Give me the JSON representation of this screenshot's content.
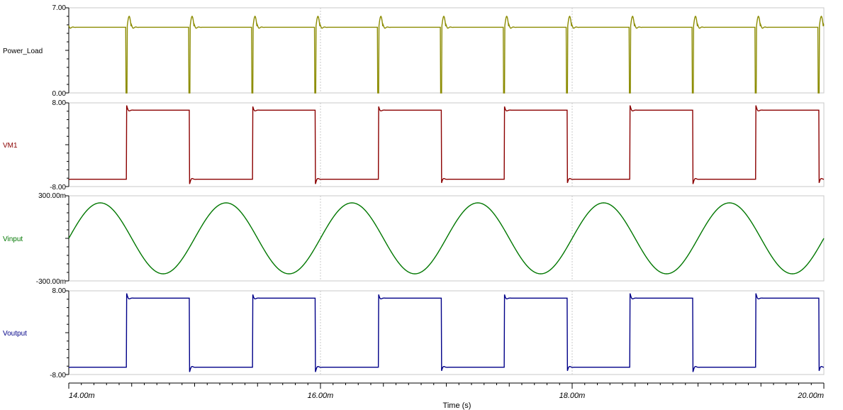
{
  "chart_data": {
    "type": "line",
    "xlabel": "Time (s)",
    "xlim": [
      0.014,
      0.02
    ],
    "x_ticks": [
      "14.00m",
      "16.00m",
      "18.00m",
      "20.00m"
    ],
    "x_tick_values": [
      0.014,
      0.016,
      0.018,
      0.02
    ],
    "grid": "dashed vertical lines at major x ticks",
    "panels": [
      {
        "name": "Power_Load",
        "color": "#8b8b00",
        "ylim": [
          0,
          7
        ],
        "y_ticks": [
          "7.00",
          "0.00"
        ],
        "waveform": "square-spikes",
        "level": 5.4,
        "spike_high": 6.3,
        "spike_low": 0.0,
        "period_s": 0.0005
      },
      {
        "name": "VM1",
        "color": "#8b0000",
        "ylim": [
          -8,
          8
        ],
        "y_ticks": [
          "8.00",
          "-8.00"
        ],
        "waveform": "square",
        "high": 6.6,
        "low": -6.6,
        "period_s": 0.001,
        "first_rising_edge_s": 0.01446
      },
      {
        "name": "Vinput",
        "color": "#007700",
        "ylim": [
          -0.3,
          0.3
        ],
        "y_ticks": [
          "300.00m",
          "-300.00m"
        ],
        "waveform": "sine",
        "amplitude": 0.25,
        "frequency_hz": 1000,
        "first_peak_s": 0.01425
      },
      {
        "name": "Voutput",
        "color": "#000088",
        "ylim": [
          -8,
          8
        ],
        "y_ticks": [
          "8.00",
          "-8.00"
        ],
        "waveform": "square",
        "high": 6.6,
        "low": -6.6,
        "period_s": 0.001,
        "first_rising_edge_s": 0.01446
      }
    ]
  }
}
